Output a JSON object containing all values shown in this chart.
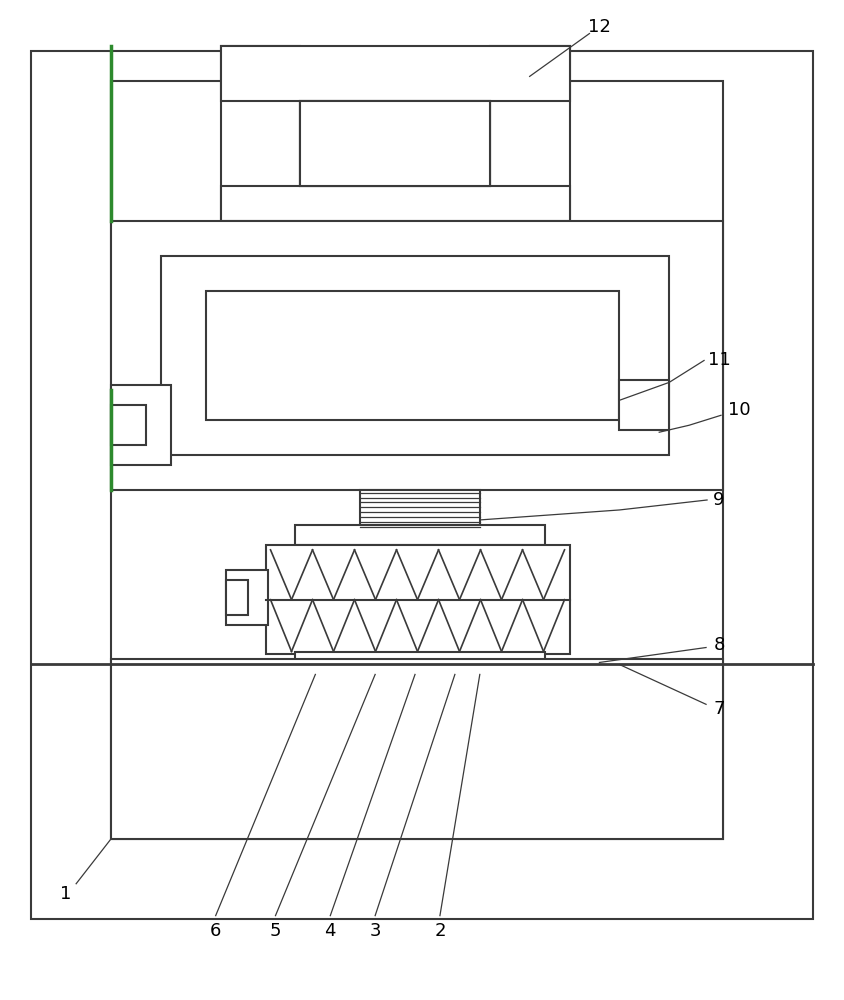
{
  "bg_color": "#ffffff",
  "line_color": "#3a3a3a",
  "green_color": "#2d8a2d",
  "line_width": 1.5,
  "thin_line": 0.9,
  "label_fontsize": 13,
  "fig_w": 8.44,
  "fig_h": 10.0,
  "dpi": 100
}
